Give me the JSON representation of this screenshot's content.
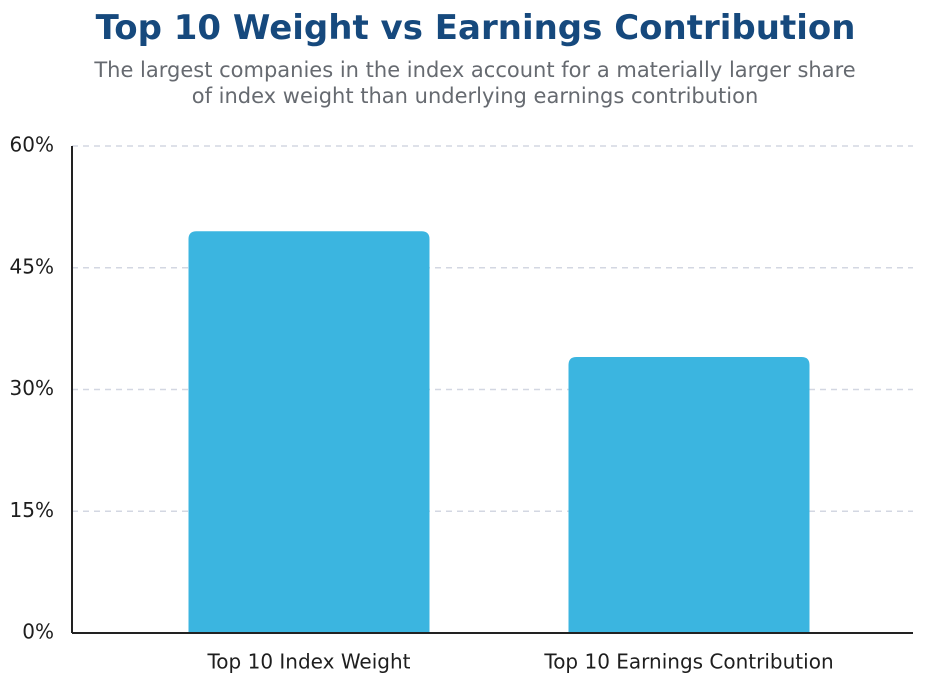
{
  "chart_data": {
    "type": "bar",
    "title": "Top 10 Weight vs Earnings Contribution",
    "subtitle": "The largest companies in the index account for a materially larger share of index weight than underlying earnings contribution",
    "categories": [
      "Top 10 Index Weight",
      "Top 10 Earnings Contribution"
    ],
    "values": [
      49.5,
      34
    ],
    "color": "#3bb5e0",
    "ylim": [
      0,
      60
    ],
    "yticks": [
      {
        "value": 0,
        "label": "0%"
      },
      {
        "value": 15,
        "label": "15%"
      },
      {
        "value": 30,
        "label": "30%"
      },
      {
        "value": 45,
        "label": "45%"
      },
      {
        "value": 60,
        "label": "60%"
      }
    ],
    "grid": true
  }
}
